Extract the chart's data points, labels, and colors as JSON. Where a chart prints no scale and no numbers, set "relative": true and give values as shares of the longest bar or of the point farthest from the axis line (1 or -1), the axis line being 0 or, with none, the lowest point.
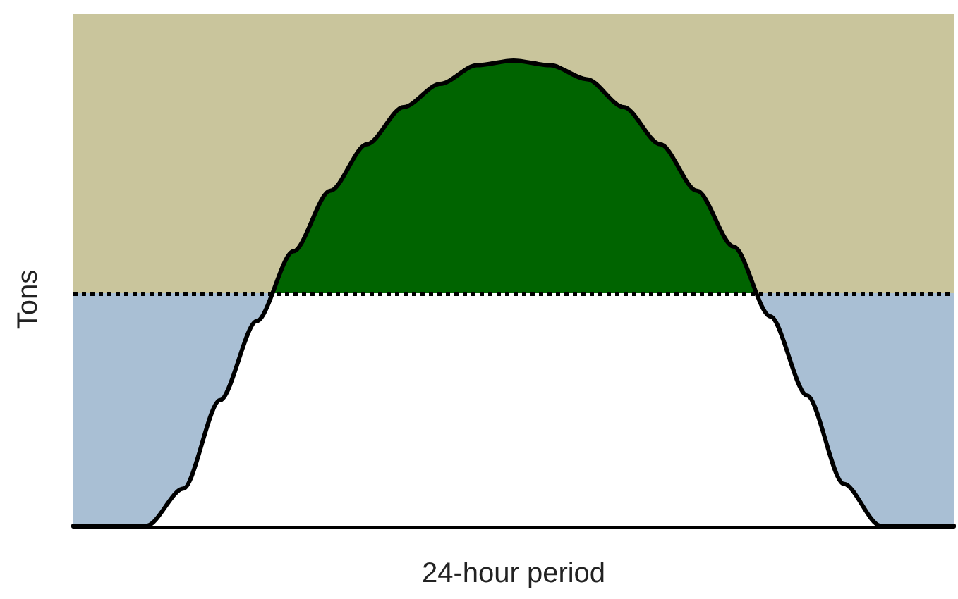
{
  "chart_data": {
    "type": "area",
    "relative": true,
    "xlabel": "24-hour period",
    "ylabel": "Tons",
    "marker": "none",
    "categories": [
      null,
      null,
      null,
      null,
      null,
      null,
      null,
      null,
      null,
      null,
      null,
      null,
      null,
      null,
      null,
      null,
      null,
      null,
      null,
      null,
      null,
      null,
      null,
      null,
      null
    ],
    "series": [
      {
        "color": "#006400",
        "values": [
          0,
          0,
          0,
          0.08,
          0.27,
          0.44,
          0.59,
          0.72,
          0.82,
          0.9,
          0.95,
          0.99,
          1,
          0.99,
          0.96,
          0.9,
          0.82,
          0.72,
          0.6,
          0.45,
          0.28,
          0.09,
          0,
          0,
          0
        ]
      }
    ],
    "ref_lines": [
      {
        "axis": "y",
        "value": 0.5,
        "line_style": "dotted",
        "color": "#000000"
      }
    ],
    "bands": [
      {
        "axis": "y",
        "from": 0,
        "to": 0.5,
        "color": "#a9bfd4"
      }
    ]
  }
}
